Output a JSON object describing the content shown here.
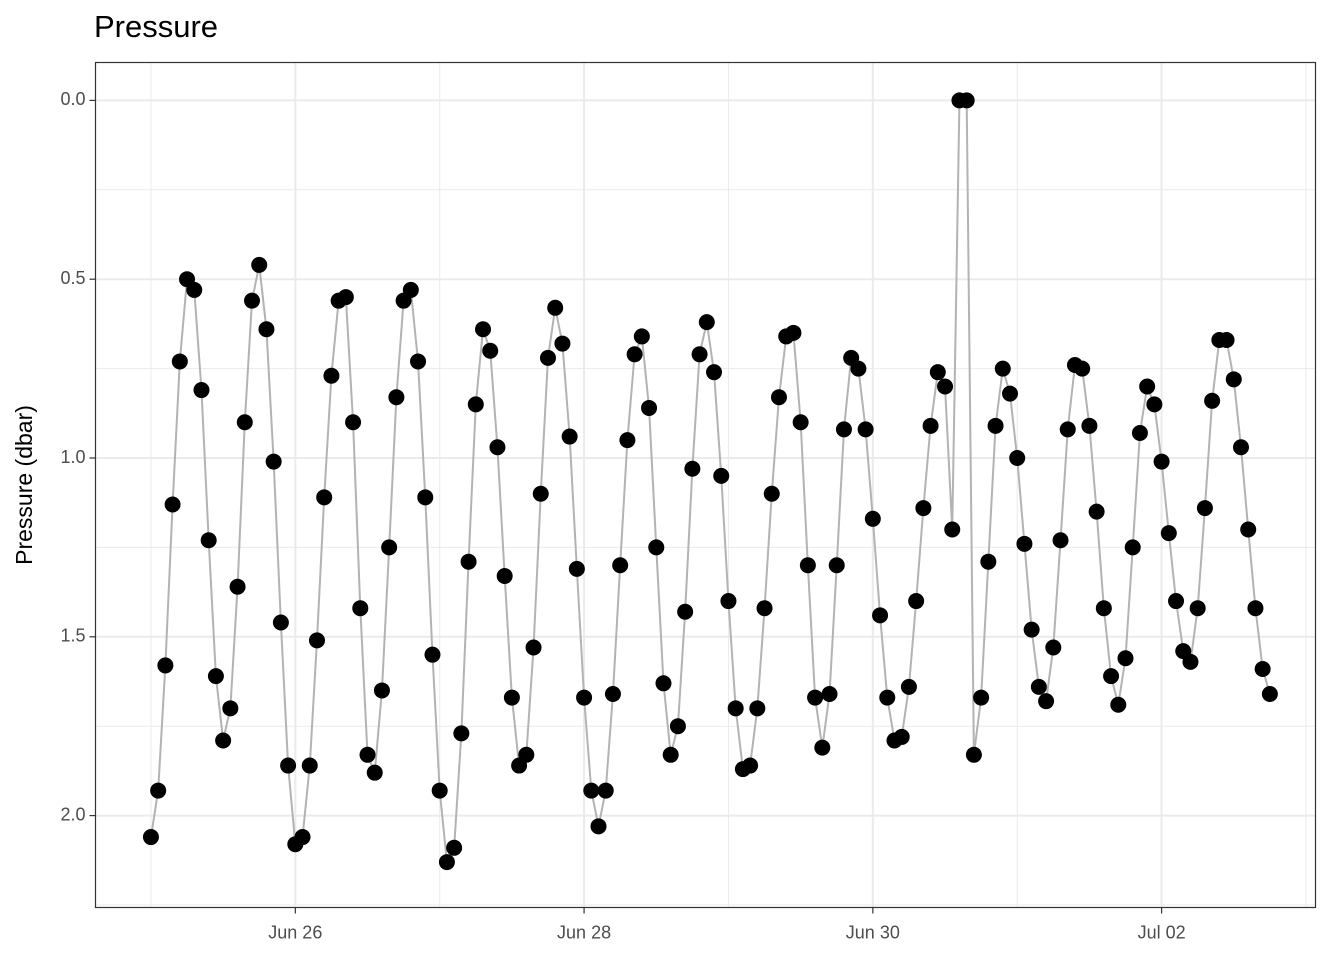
{
  "chart_data": {
    "type": "scatter-line",
    "title": "Pressure",
    "y_label": "Pressure (dbar)",
    "x": [
      25.0,
      25.05,
      25.1,
      25.15,
      25.2,
      25.25,
      25.3,
      25.35,
      25.4,
      25.45,
      25.5,
      25.55,
      25.6,
      25.65,
      25.7,
      25.75,
      25.8,
      25.85,
      25.9,
      25.95,
      26.0,
      26.05,
      26.1,
      26.15,
      26.2,
      26.25,
      26.3,
      26.35,
      26.4,
      26.45,
      26.5,
      26.55,
      26.6,
      26.65,
      26.7,
      26.75,
      26.8,
      26.85,
      26.9,
      26.95,
      27.0,
      27.05,
      27.1,
      27.15,
      27.2,
      27.25,
      27.3,
      27.35,
      27.4,
      27.45,
      27.5,
      27.55,
      27.6,
      27.65,
      27.7,
      27.75,
      27.8,
      27.85,
      27.9,
      27.95,
      28.0,
      28.05,
      28.1,
      28.15,
      28.2,
      28.25,
      28.3,
      28.35,
      28.4,
      28.45,
      28.5,
      28.55,
      28.6,
      28.65,
      28.7,
      28.75,
      28.8,
      28.85,
      28.9,
      28.95,
      29.0,
      29.05,
      29.1,
      29.15,
      29.2,
      29.25,
      29.3,
      29.35,
      29.4,
      29.45,
      29.5,
      29.55,
      29.6,
      29.65,
      29.7,
      29.75,
      29.8,
      29.85,
      29.9,
      29.95,
      30.0,
      30.05,
      30.1,
      30.15,
      30.2,
      30.25,
      30.3,
      30.35,
      30.4,
      30.45,
      30.5,
      30.55,
      30.6,
      30.65,
      30.7,
      30.75,
      30.8,
      30.85,
      30.9,
      30.95,
      31.0,
      31.05,
      31.1,
      31.15,
      31.2,
      31.25,
      31.3,
      31.35,
      31.4,
      31.45,
      31.5,
      31.55,
      31.6,
      31.65,
      31.7,
      31.75,
      31.8,
      31.85,
      31.9,
      31.95,
      32.0,
      32.05,
      32.1,
      32.15,
      32.2,
      32.25,
      32.3,
      32.35,
      32.4,
      32.45,
      32.5,
      32.55,
      32.6,
      32.65,
      32.7,
      32.75
    ],
    "values": [
      2.06,
      1.93,
      1.58,
      1.13,
      0.73,
      0.5,
      0.53,
      0.81,
      1.23,
      1.61,
      1.79,
      1.7,
      1.36,
      0.9,
      0.56,
      0.46,
      0.64,
      1.01,
      1.46,
      1.86,
      2.08,
      2.06,
      1.86,
      1.51,
      1.11,
      0.77,
      0.56,
      0.55,
      0.9,
      1.42,
      1.83,
      1.88,
      1.65,
      1.25,
      0.83,
      0.56,
      0.53,
      0.73,
      1.11,
      1.55,
      1.93,
      2.13,
      2.09,
      1.77,
      1.29,
      0.85,
      0.64,
      0.7,
      0.97,
      1.33,
      1.67,
      1.86,
      1.83,
      1.53,
      1.1,
      0.72,
      0.58,
      0.68,
      0.94,
      1.31,
      1.67,
      1.93,
      2.03,
      1.93,
      1.66,
      1.3,
      0.95,
      0.71,
      0.66,
      0.86,
      1.25,
      1.63,
      1.83,
      1.75,
      1.43,
      1.03,
      0.71,
      0.62,
      0.76,
      1.05,
      1.4,
      1.7,
      1.87,
      1.86,
      1.7,
      1.42,
      1.1,
      0.83,
      0.66,
      0.65,
      0.9,
      1.3,
      1.67,
      1.81,
      1.66,
      1.3,
      0.92,
      0.72,
      0.75,
      0.92,
      1.17,
      1.44,
      1.67,
      1.79,
      1.78,
      1.64,
      1.4,
      1.14,
      0.91,
      0.76,
      0.8,
      1.2,
      0,
      0,
      1.83,
      1.67,
      1.29,
      0.91,
      0.75,
      0.82,
      1.0,
      1.24,
      1.48,
      1.64,
      1.68,
      1.53,
      1.23,
      0.92,
      0.74,
      0.75,
      0.91,
      1.15,
      1.42,
      1.61,
      1.69,
      1.56,
      1.25,
      0.93,
      0.8,
      0.85,
      1.01,
      1.21,
      1.4,
      1.54,
      1.57,
      1.42,
      1.14,
      0.84,
      0.67,
      0.67,
      0.78,
      0.97,
      1.2,
      1.42,
      1.59,
      1.66
    ],
    "color": "#000000",
    "line_color": "#b3b3b3",
    "xlim": [
      24.616,
      33.066
    ],
    "xticks": [
      {
        "value": 26,
        "label": "Jun 26"
      },
      {
        "value": 28,
        "label": "Jun 28"
      },
      {
        "value": 30,
        "label": "Jun 30"
      },
      {
        "value": 32,
        "label": "Jul 02"
      }
    ],
    "ylim": [
      2.257,
      -0.106
    ],
    "yticks": [
      {
        "value": 0,
        "label": "0.0"
      },
      {
        "value": 0.5,
        "label": "0.5"
      },
      {
        "value": 1,
        "label": "1.0"
      },
      {
        "value": 1.5,
        "label": "1.5"
      },
      {
        "value": 2,
        "label": "2.0"
      }
    ],
    "grid": true
  }
}
